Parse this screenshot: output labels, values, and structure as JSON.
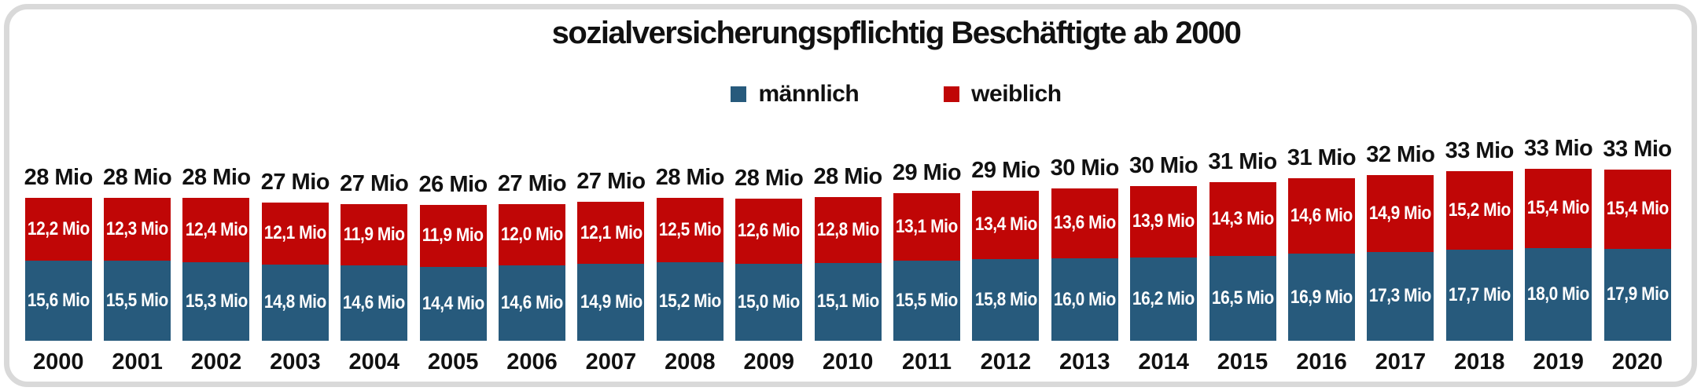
{
  "chart": {
    "title": "sozialversicherungspflichtig Beschäftigte ab 2000",
    "legend": {
      "male_label": "männlich",
      "female_label": "weiblich"
    },
    "colors": {
      "male": "#275A7C",
      "female": "#C00606",
      "frame_border": "#D9D9D9",
      "text": "#111111",
      "bar_label_text": "#FFFFFF"
    },
    "unit": "Mio"
  },
  "chart_data": {
    "type": "bar",
    "stacked": true,
    "grid": false,
    "legend_position": "top",
    "title": "sozialversicherungspflichtig Beschäftigte ab 2000",
    "xlabel": "",
    "ylabel": "",
    "value_unit": "Mio",
    "categories": [
      "2000",
      "2001",
      "2002",
      "2003",
      "2004",
      "2005",
      "2006",
      "2007",
      "2008",
      "2009",
      "2010",
      "2011",
      "2012",
      "2013",
      "2014",
      "2015",
      "2016",
      "2017",
      "2018",
      "2019",
      "2020"
    ],
    "series": [
      {
        "name": "männlich",
        "color": "#275A7C",
        "values": [
          15.6,
          15.5,
          15.3,
          14.8,
          14.6,
          14.4,
          14.6,
          14.9,
          15.2,
          15.0,
          15.1,
          15.5,
          15.8,
          16.0,
          16.2,
          16.5,
          16.9,
          17.3,
          17.7,
          18.0,
          17.9
        ],
        "labels": [
          "15,6 Mio",
          "15,5 Mio",
          "15,3 Mio",
          "14,8 Mio",
          "14,6 Mio",
          "14,4 Mio",
          "14,6 Mio",
          "14,9 Mio",
          "15,2 Mio",
          "15,0 Mio",
          "15,1 Mio",
          "15,5 Mio",
          "15,8 Mio",
          "16,0 Mio",
          "16,2 Mio",
          "16,5 Mio",
          "16,9 Mio",
          "17,3 Mio",
          "17,7 Mio",
          "18,0 Mio",
          "17,9 Mio"
        ]
      },
      {
        "name": "weiblich",
        "color": "#C00606",
        "values": [
          12.2,
          12.3,
          12.4,
          12.1,
          11.9,
          11.9,
          12.0,
          12.1,
          12.5,
          12.6,
          12.8,
          13.1,
          13.4,
          13.6,
          13.9,
          14.3,
          14.6,
          14.9,
          15.2,
          15.4,
          15.4
        ],
        "labels": [
          "12,2 Mio",
          "12,3 Mio",
          "12,4 Mio",
          "12,1 Mio",
          "11,9 Mio",
          "11,9 Mio",
          "12,0 Mio",
          "12,1 Mio",
          "12,5 Mio",
          "12,6 Mio",
          "12,8 Mio",
          "13,1 Mio",
          "13,4 Mio",
          "13,6 Mio",
          "13,9 Mio",
          "14,3 Mio",
          "14,6 Mio",
          "14,9 Mio",
          "15,2 Mio",
          "15,4 Mio",
          "15,4 Mio"
        ]
      }
    ],
    "totals": {
      "values": [
        28,
        28,
        28,
        27,
        27,
        26,
        27,
        27,
        28,
        28,
        28,
        29,
        29,
        30,
        30,
        31,
        31,
        32,
        33,
        33,
        33
      ],
      "labels": [
        "28 Mio",
        "28 Mio",
        "28 Mio",
        "27 Mio",
        "27 Mio",
        "26 Mio",
        "27 Mio",
        "27 Mio",
        "28 Mio",
        "28 Mio",
        "28 Mio",
        "29 Mio",
        "29 Mio",
        "30 Mio",
        "30 Mio",
        "31 Mio",
        "31 Mio",
        "32 Mio",
        "33 Mio",
        "33 Mio",
        "33 Mio"
      ]
    }
  }
}
